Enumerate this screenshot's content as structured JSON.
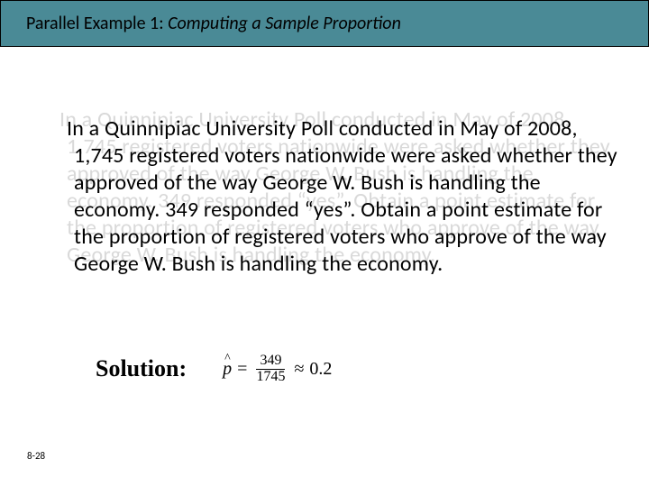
{
  "title": {
    "prefix": "Parallel Example 1:  ",
    "italic": "Computing a Sample Proportion"
  },
  "paragraph": {
    "shadow": "In a Quinnipiac University Poll conducted in May of 2008, 1,745 registered voters nationwide were asked whether they approved of the way George W. Bush is handling the economy.  349 responded “yes”.  Obtain a point estimate for the proportion of registered voters who approve of the way George W. Bush is handling the economy.",
    "main": "In a Quinnipiac University Poll conducted in May of 2008, 1,745 registered voters nationwide were asked whether they approved of the way George W. Bush is handling the economy.  349 responded “yes”.  Obtain a point estimate for the proportion of registered voters who approve of the way George W. Bush is handling the economy."
  },
  "solution": {
    "label": "Solution:",
    "phat_symbol": "p",
    "numerator": "349",
    "denominator": "1745",
    "result": "0.2",
    "approx": "≈"
  },
  "slide_number": "8-28",
  "colors": {
    "title_bar_bg": "#4a8a96",
    "title_bar_border": "#000000",
    "shadow_text": "#d9d9d9",
    "main_text": "#000000",
    "background": "#ffffff"
  },
  "typography": {
    "title_fontsize": 20,
    "body_fontsize": 24,
    "solution_label_fontsize": 26,
    "formula_fontsize": 20,
    "slidenum_fontsize": 11
  }
}
